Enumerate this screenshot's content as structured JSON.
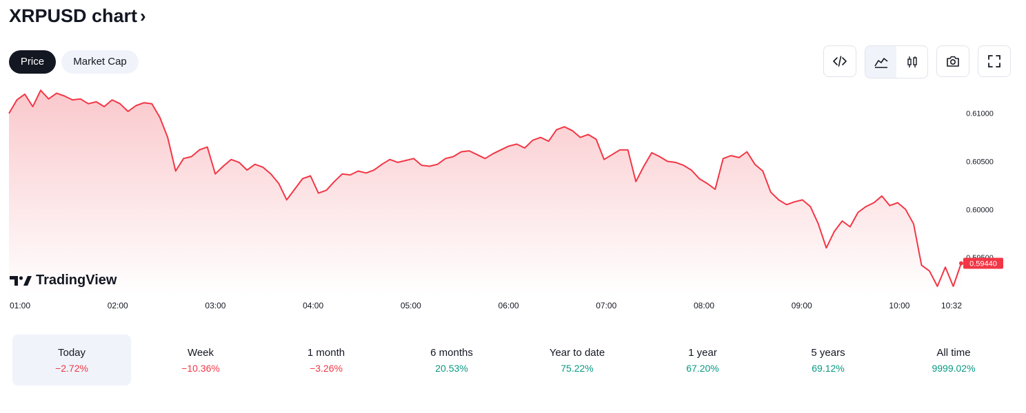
{
  "header": {
    "title": "XRPUSD chart",
    "chevron": "›"
  },
  "tabs": [
    {
      "label": "Price",
      "active": true
    },
    {
      "label": "Market Cap",
      "active": false
    }
  ],
  "toolbar": {
    "icons": [
      "embed-code-icon",
      "area-chart-icon",
      "candlestick-icon",
      "camera-icon",
      "fullscreen-icon"
    ]
  },
  "logo": {
    "text": "TradingView"
  },
  "colors": {
    "line": "#f23645",
    "area_top": "#f8b6bb",
    "negative": "#f23645",
    "positive": "#089981",
    "dark": "#131722"
  },
  "chart_data": {
    "type": "area",
    "series": [
      {
        "values": [
          0.61,
          0.6114,
          0.612,
          0.6107,
          0.6124,
          0.6115,
          0.6121,
          0.6118,
          0.6114,
          0.6115,
          0.611,
          0.6112,
          0.6107,
          0.6114,
          0.611,
          0.6102,
          0.6108,
          0.6111,
          0.611,
          0.6096,
          0.6075,
          0.604,
          0.6053,
          0.6055,
          0.6062,
          0.6065,
          0.6037,
          0.6045,
          0.6052,
          0.6049,
          0.6041,
          0.6047,
          0.6044,
          0.6037,
          0.6027,
          0.601,
          0.6021,
          0.6032,
          0.6035,
          0.6017,
          0.602,
          0.6029,
          0.6037,
          0.6036,
          0.604,
          0.6038,
          0.6041,
          0.6047,
          0.6052,
          0.6049,
          0.6051,
          0.6053,
          0.6046,
          0.6045,
          0.6047,
          0.6053,
          0.6055,
          0.606,
          0.6061,
          0.6057,
          0.6053,
          0.6058,
          0.6062,
          0.6066,
          0.6068,
          0.6064,
          0.6072,
          0.6075,
          0.6071,
          0.6083,
          0.6086,
          0.6082,
          0.6075,
          0.6078,
          0.6073,
          0.6052,
          0.6057,
          0.6062,
          0.6062,
          0.6029,
          0.6045,
          0.6059,
          0.6055,
          0.605,
          0.6049,
          0.6046,
          0.6041,
          0.6032,
          0.6027,
          0.6021,
          0.6053,
          0.6056,
          0.6054,
          0.606,
          0.6047,
          0.604,
          0.6018,
          0.601,
          0.6005,
          0.6008,
          0.601,
          0.6003,
          0.5985,
          0.596,
          0.5977,
          0.5988,
          0.5982,
          0.5997,
          0.6003,
          0.6007,
          0.6014,
          0.6004,
          0.6007,
          0.6,
          0.5985,
          0.5942,
          0.5936,
          0.592,
          0.594,
          0.592,
          0.5944
        ]
      }
    ],
    "x_ticks": [
      "01:00",
      "02:00",
      "03:00",
      "04:00",
      "05:00",
      "06:00",
      "07:00",
      "08:00",
      "09:00",
      "10:00",
      "10:32"
    ],
    "y_ticks": [
      "0.61000",
      "0.60500",
      "0.60000",
      "0.59500"
    ],
    "last_price": "0.59440",
    "ylim": [
      0.591,
      0.6132
    ]
  },
  "performance": [
    {
      "label": "Today",
      "value": "−2.72%",
      "trend": "neg",
      "selected": true
    },
    {
      "label": "Week",
      "value": "−10.36%",
      "trend": "neg",
      "selected": false
    },
    {
      "label": "1 month",
      "value": "−3.26%",
      "trend": "neg",
      "selected": false
    },
    {
      "label": "6 months",
      "value": "20.53%",
      "trend": "pos",
      "selected": false
    },
    {
      "label": "Year to date",
      "value": "75.22%",
      "trend": "pos",
      "selected": false
    },
    {
      "label": "1 year",
      "value": "67.20%",
      "trend": "pos",
      "selected": false
    },
    {
      "label": "5 years",
      "value": "69.12%",
      "trend": "pos",
      "selected": false
    },
    {
      "label": "All time",
      "value": "9999.02%",
      "trend": "pos",
      "selected": false
    }
  ]
}
